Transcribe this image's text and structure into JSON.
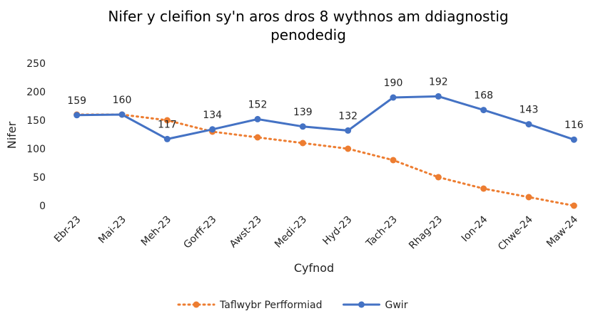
{
  "chart_data": {
    "type": "line",
    "title": "Nifer y cleifion sy'n aros dros 8 wythnos am ddiagnostig penodedig",
    "x_label": "Cyfnod",
    "y_label": "Nifer",
    "categories": [
      "Ebr-23",
      "Mai-23",
      "Meh-23",
      "Gorff-23",
      "Awst-23",
      "Medi-23",
      "Hyd-23",
      "Tach-23",
      "Rhag-23",
      "Ion-24",
      "Chwe-24",
      "Maw-24"
    ],
    "series": [
      {
        "name": "Taflwybr Perfformiad",
        "color": "#ed7d31",
        "style": "dotted",
        "values": [
          160,
          160,
          150,
          130,
          120,
          110,
          100,
          80,
          50,
          30,
          15,
          0
        ]
      },
      {
        "name": "Gwir",
        "color": "#4472c4",
        "style": "solid",
        "data_labels": true,
        "values": [
          159,
          160,
          117,
          134,
          152,
          139,
          132,
          190,
          192,
          168,
          143,
          116
        ]
      }
    ],
    "ylim": [
      0,
      250
    ],
    "yticks": [
      0,
      50,
      100,
      150,
      200,
      250
    ],
    "grid": false,
    "legend": "bottom"
  }
}
